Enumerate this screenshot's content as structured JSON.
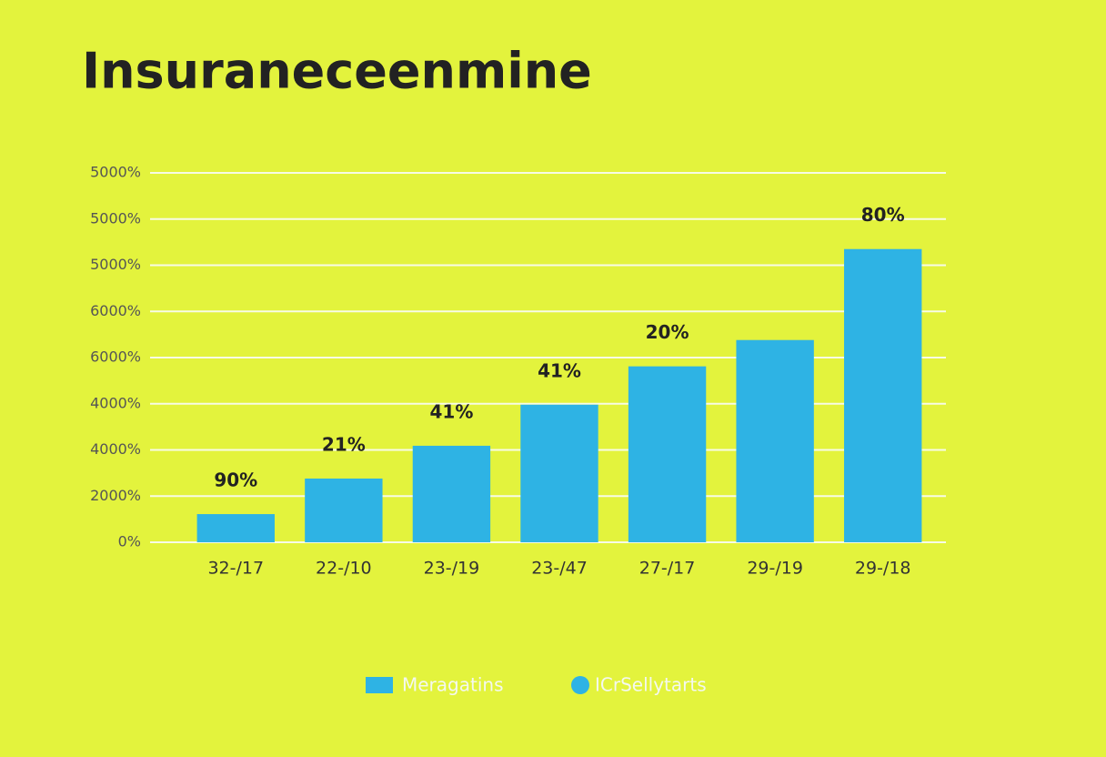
{
  "chart_data": {
    "type": "bar",
    "title": "Insuraneceenmine",
    "categories": [
      "32-/17",
      "22-/10",
      "23-/19",
      "23-/47",
      "27-/17",
      "29-/19",
      "29-/18"
    ],
    "values": [
      0.61,
      1.38,
      2.09,
      2.98,
      3.81,
      4.38,
      6.35
    ],
    "bar_labels": [
      "90%",
      "21%",
      "41%",
      "41%",
      "20%",
      null,
      "80%"
    ],
    "color": "#2eb3e4",
    "ylim": [
      0,
      8
    ],
    "yticks": [
      {
        "value": 0,
        "label": "0%"
      },
      {
        "value": 1,
        "label": "2000%"
      },
      {
        "value": 2,
        "label": "4000%"
      },
      {
        "value": 3,
        "label": "4000%"
      },
      {
        "value": 4,
        "label": "6000%"
      },
      {
        "value": 5,
        "label": "6000%"
      },
      {
        "value": 6,
        "label": "5000%"
      },
      {
        "value": 7,
        "label": "5000%"
      },
      {
        "value": 8,
        "label": "5000%"
      }
    ],
    "grid": true,
    "legend": [
      {
        "name": "Meragatins",
        "color": "#2eb3e4",
        "marker": "square"
      },
      {
        "name": "ICrSellytarts",
        "color": "#2eb3e4",
        "marker": "circle"
      }
    ]
  }
}
